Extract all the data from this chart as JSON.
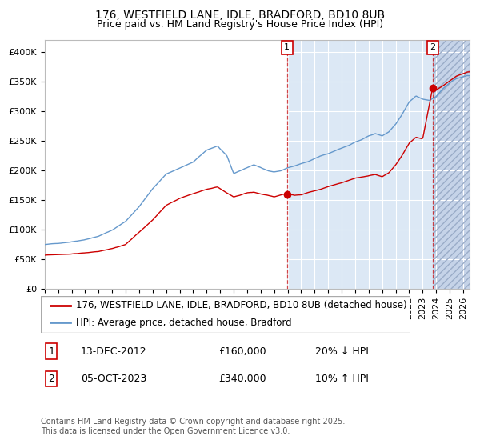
{
  "title1": "176, WESTFIELD LANE, IDLE, BRADFORD, BD10 8UB",
  "title2": "Price paid vs. HM Land Registry's House Price Index (HPI)",
  "ylim": [
    0,
    420000
  ],
  "yticks": [
    0,
    50000,
    100000,
    150000,
    200000,
    250000,
    300000,
    350000,
    400000
  ],
  "ytick_labels": [
    "£0",
    "£50K",
    "£100K",
    "£150K",
    "£200K",
    "£250K",
    "£300K",
    "£350K",
    "£400K"
  ],
  "xlim_start": 1995.0,
  "xlim_end": 2026.5,
  "vline1_x": 2012.95,
  "vline2_x": 2023.75,
  "point1_x": 2012.95,
  "point1_y": 160000,
  "point2_x": 2023.75,
  "point2_y": 340000,
  "annotation1": [
    "1",
    "13-DEC-2012",
    "£160,000",
    "20% ↓ HPI"
  ],
  "annotation2": [
    "2",
    "05-OCT-2023",
    "£340,000",
    "10% ↑ HPI"
  ],
  "legend_line1": "176, WESTFIELD LANE, IDLE, BRADFORD, BD10 8UB (detached house)",
  "legend_line2": "HPI: Average price, detached house, Bradford",
  "footer": "Contains HM Land Registry data © Crown copyright and database right 2025.\nThis data is licensed under the Open Government Licence v3.0.",
  "red_color": "#cc0000",
  "blue_color": "#6699cc",
  "bg_color_left": "#ffffff",
  "bg_color_mid": "#dce8f5",
  "bg_color_right": "#dce8f5",
  "hatch_fg": "#c5d3e8",
  "grid_color": "#ffffff",
  "title_fontsize": 10,
  "subtitle_fontsize": 9,
  "axis_fontsize": 8,
  "legend_fontsize": 8.5,
  "annotation_fontsize": 9,
  "footer_fontsize": 7
}
